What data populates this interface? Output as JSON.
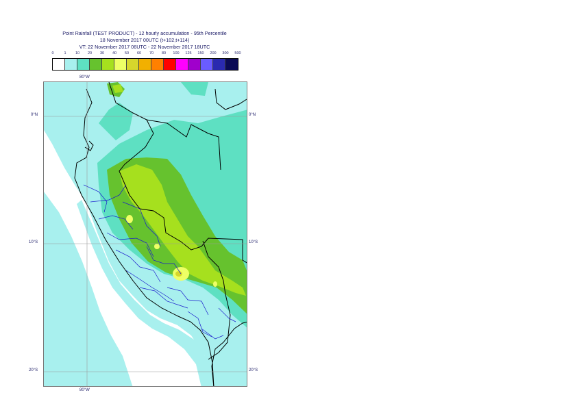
{
  "title": {
    "line1": "Point Rainfall (TEST PRODUCT) - 12 hourly accumulation - 95th Percentile",
    "line2": "18 November 2017 00UTC (t+102,t+114)",
    "line3": "VT: 22 November 2017 06UTC - 22 November 2017 18UTC"
  },
  "legend": {
    "ticks": [
      "0",
      "1",
      "10",
      "20",
      "30",
      "40",
      "50",
      "60",
      "70",
      "80",
      "100",
      "125",
      "150",
      "200",
      "300",
      "500"
    ],
    "colors": [
      "#ffffff",
      "#a8f0ee",
      "#5ee0c2",
      "#66c22e",
      "#a6e01e",
      "#eeff66",
      "#d6d62c",
      "#f2b000",
      "#ff8000",
      "#ff0000",
      "#ff00ff",
      "#a000cc",
      "#6a5cff",
      "#2a2ab0",
      "#0a0a55"
    ]
  },
  "map": {
    "labels": {
      "lon_top": "80°W",
      "lon_bottom": "80°W",
      "lat0_left": "0°N",
      "lat0_right": "0°N",
      "lat10_left": "10°S",
      "lat10_right": "10°S",
      "lat20_left": "20°S",
      "lat20_right": "20°S"
    },
    "ocean_color": "#ffffff",
    "low_rain_color": "#a8f0ee",
    "border_color": "#000000",
    "admin_border_color": "#1a1acc"
  }
}
